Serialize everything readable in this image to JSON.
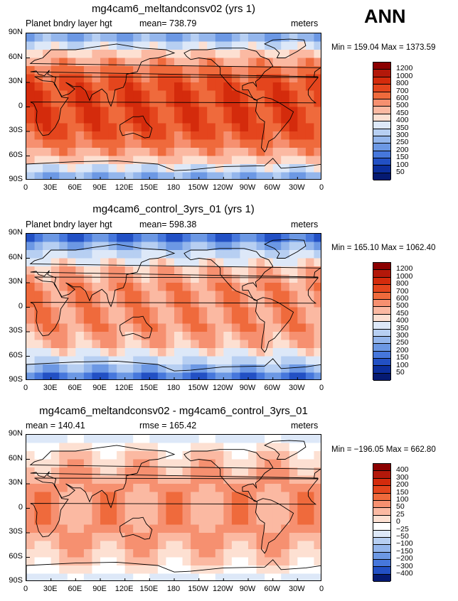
{
  "season": "ANN",
  "x_ticks": [
    "0",
    "30E",
    "60E",
    "90E",
    "120E",
    "150E",
    "180",
    "150W",
    "120W",
    "90W",
    "60W",
    "30W",
    "0"
  ],
  "y_ticks": [
    "90N",
    "60N",
    "30N",
    "0",
    "30S",
    "60S",
    "90S"
  ],
  "chart_data": [
    {
      "type": "heatmap",
      "title": "mg4cam6_meltandconsv02 (yrs 1)",
      "left_label": "Planet bndry layer hgt",
      "center_label": "mean= 738.79",
      "right_label": "meters",
      "min_max": "Min = 159.04 Max = 1373.59",
      "colorbar": {
        "levels": [
          "1200",
          "1000",
          "800",
          "700",
          "600",
          "500",
          "450",
          "400",
          "350",
          "300",
          "250",
          "200",
          "150",
          "100",
          "50"
        ],
        "colors": [
          "#8b0000",
          "#b3180a",
          "#d42b0c",
          "#e4451d",
          "#ef6a3c",
          "#f69070",
          "#fbb9a2",
          "#fde0d2",
          "#dde8f8",
          "#b7cff2",
          "#94b6ec",
          "#6c98e4",
          "#4677dc",
          "#2250c4",
          "#0b2e9c",
          "#051a72"
        ]
      }
    },
    {
      "type": "heatmap",
      "title": "mg4cam6_control_3yrs_01 (yrs 1)",
      "left_label": "Planet bndry layer hgt",
      "center_label": "mean= 598.38",
      "right_label": "meters",
      "min_max": "Min = 165.10 Max = 1062.40",
      "colorbar": {
        "levels": [
          "1200",
          "1000",
          "800",
          "700",
          "600",
          "500",
          "450",
          "400",
          "350",
          "300",
          "250",
          "200",
          "150",
          "100",
          "50"
        ],
        "colors": [
          "#8b0000",
          "#b3180a",
          "#d42b0c",
          "#e4451d",
          "#ef6a3c",
          "#f69070",
          "#fbb9a2",
          "#fde0d2",
          "#dde8f8",
          "#b7cff2",
          "#94b6ec",
          "#6c98e4",
          "#4677dc",
          "#2250c4",
          "#0b2e9c",
          "#051a72"
        ]
      }
    },
    {
      "type": "heatmap",
      "title": "mg4cam6_meltandconsv02 - mg4cam6_control_3yrs_01",
      "left_label": "mean = 140.41",
      "center_label": "rmse = 165.42",
      "right_label": "meters",
      "min_max": "Min = −196.05 Max = 662.80",
      "colorbar": {
        "levels": [
          "400",
          "300",
          "200",
          "150",
          "100",
          "50",
          "25",
          "0",
          "−25",
          "−50",
          "−100",
          "−150",
          "−200",
          "−300",
          "−400"
        ],
        "colors": [
          "#8b0000",
          "#b3180a",
          "#d42b0c",
          "#e4451d",
          "#ef6a3c",
          "#f69070",
          "#fbb9a2",
          "#fde0d2",
          "#ffffff",
          "#dde8f8",
          "#b7cff2",
          "#94b6ec",
          "#6c98e4",
          "#4677dc",
          "#2250c4",
          "#051a72"
        ]
      }
    }
  ]
}
